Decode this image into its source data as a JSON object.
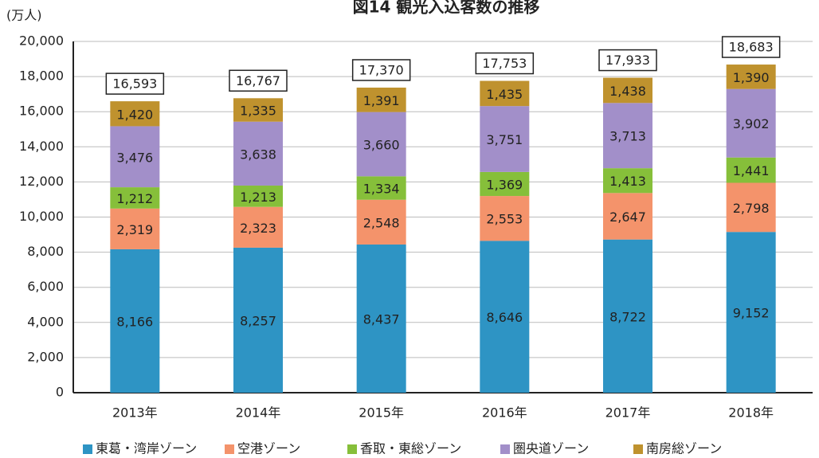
{
  "chart_data": {
    "type": "stacked_bar",
    "title": "図14 観光入込客数の推移",
    "y_unit": "(万人)",
    "categories": [
      "2013年",
      "2014年",
      "2015年",
      "2016年",
      "2017年",
      "2018年"
    ],
    "series": [
      {
        "name": "東葛・湾岸ゾーン",
        "color": "#2e94c4",
        "values": [
          8166,
          8257,
          8437,
          8646,
          8722,
          9152
        ],
        "value_labels": [
          "8,166",
          "8,257",
          "8,437",
          "8,646",
          "8,722",
          "9,152"
        ]
      },
      {
        "name": "空港ゾーン",
        "color": "#f4936b",
        "values": [
          2319,
          2323,
          2548,
          2553,
          2647,
          2798
        ],
        "value_labels": [
          "2,319",
          "2,323",
          "2,548",
          "2,553",
          "2,647",
          "2,798"
        ]
      },
      {
        "name": "香取・東総ゾーン",
        "color": "#86bf3a",
        "values": [
          1212,
          1213,
          1334,
          1369,
          1413,
          1441
        ],
        "value_labels": [
          "1,212",
          "1,213",
          "1,334",
          "1,369",
          "1,413",
          "1,441"
        ]
      },
      {
        "name": "圏央道ゾーン",
        "color": "#a28fc9",
        "values": [
          3476,
          3638,
          3660,
          3751,
          3713,
          3902
        ],
        "value_labels": [
          "3,476",
          "3,638",
          "3,660",
          "3,751",
          "3,713",
          "3,902"
        ]
      },
      {
        "name": "南房総ゾーン",
        "color": "#bf922e",
        "values": [
          1420,
          1335,
          1391,
          1435,
          1438,
          1390
        ],
        "value_labels": [
          "1,420",
          "1,335",
          "1,391",
          "1,435",
          "1,438",
          "1,390"
        ]
      }
    ],
    "totals": {
      "values": [
        16593,
        16767,
        17370,
        17753,
        17933,
        18683
      ],
      "value_labels": [
        "16,593",
        "16,767",
        "17,370",
        "17,753",
        "17,933",
        "18,683"
      ]
    },
    "ylim": [
      0,
      20000
    ],
    "yticks": [
      0,
      {
        "value": 2000,
        "label": "2,000"
      },
      {
        "value": 4000,
        "label": "4,000"
      },
      {
        "value": 6000,
        "label": "6,000"
      },
      {
        "value": 8000,
        "label": "8,000"
      },
      {
        "value": 10000,
        "label": "10,000"
      },
      {
        "value": 12000,
        "label": "12,000"
      },
      {
        "value": 14000,
        "label": "14,000"
      },
      {
        "value": 16000,
        "label": "16,000"
      },
      {
        "value": 18000,
        "label": "18,000"
      },
      {
        "value": 20000,
        "label": "20,000"
      }
    ],
    "grid": true
  }
}
